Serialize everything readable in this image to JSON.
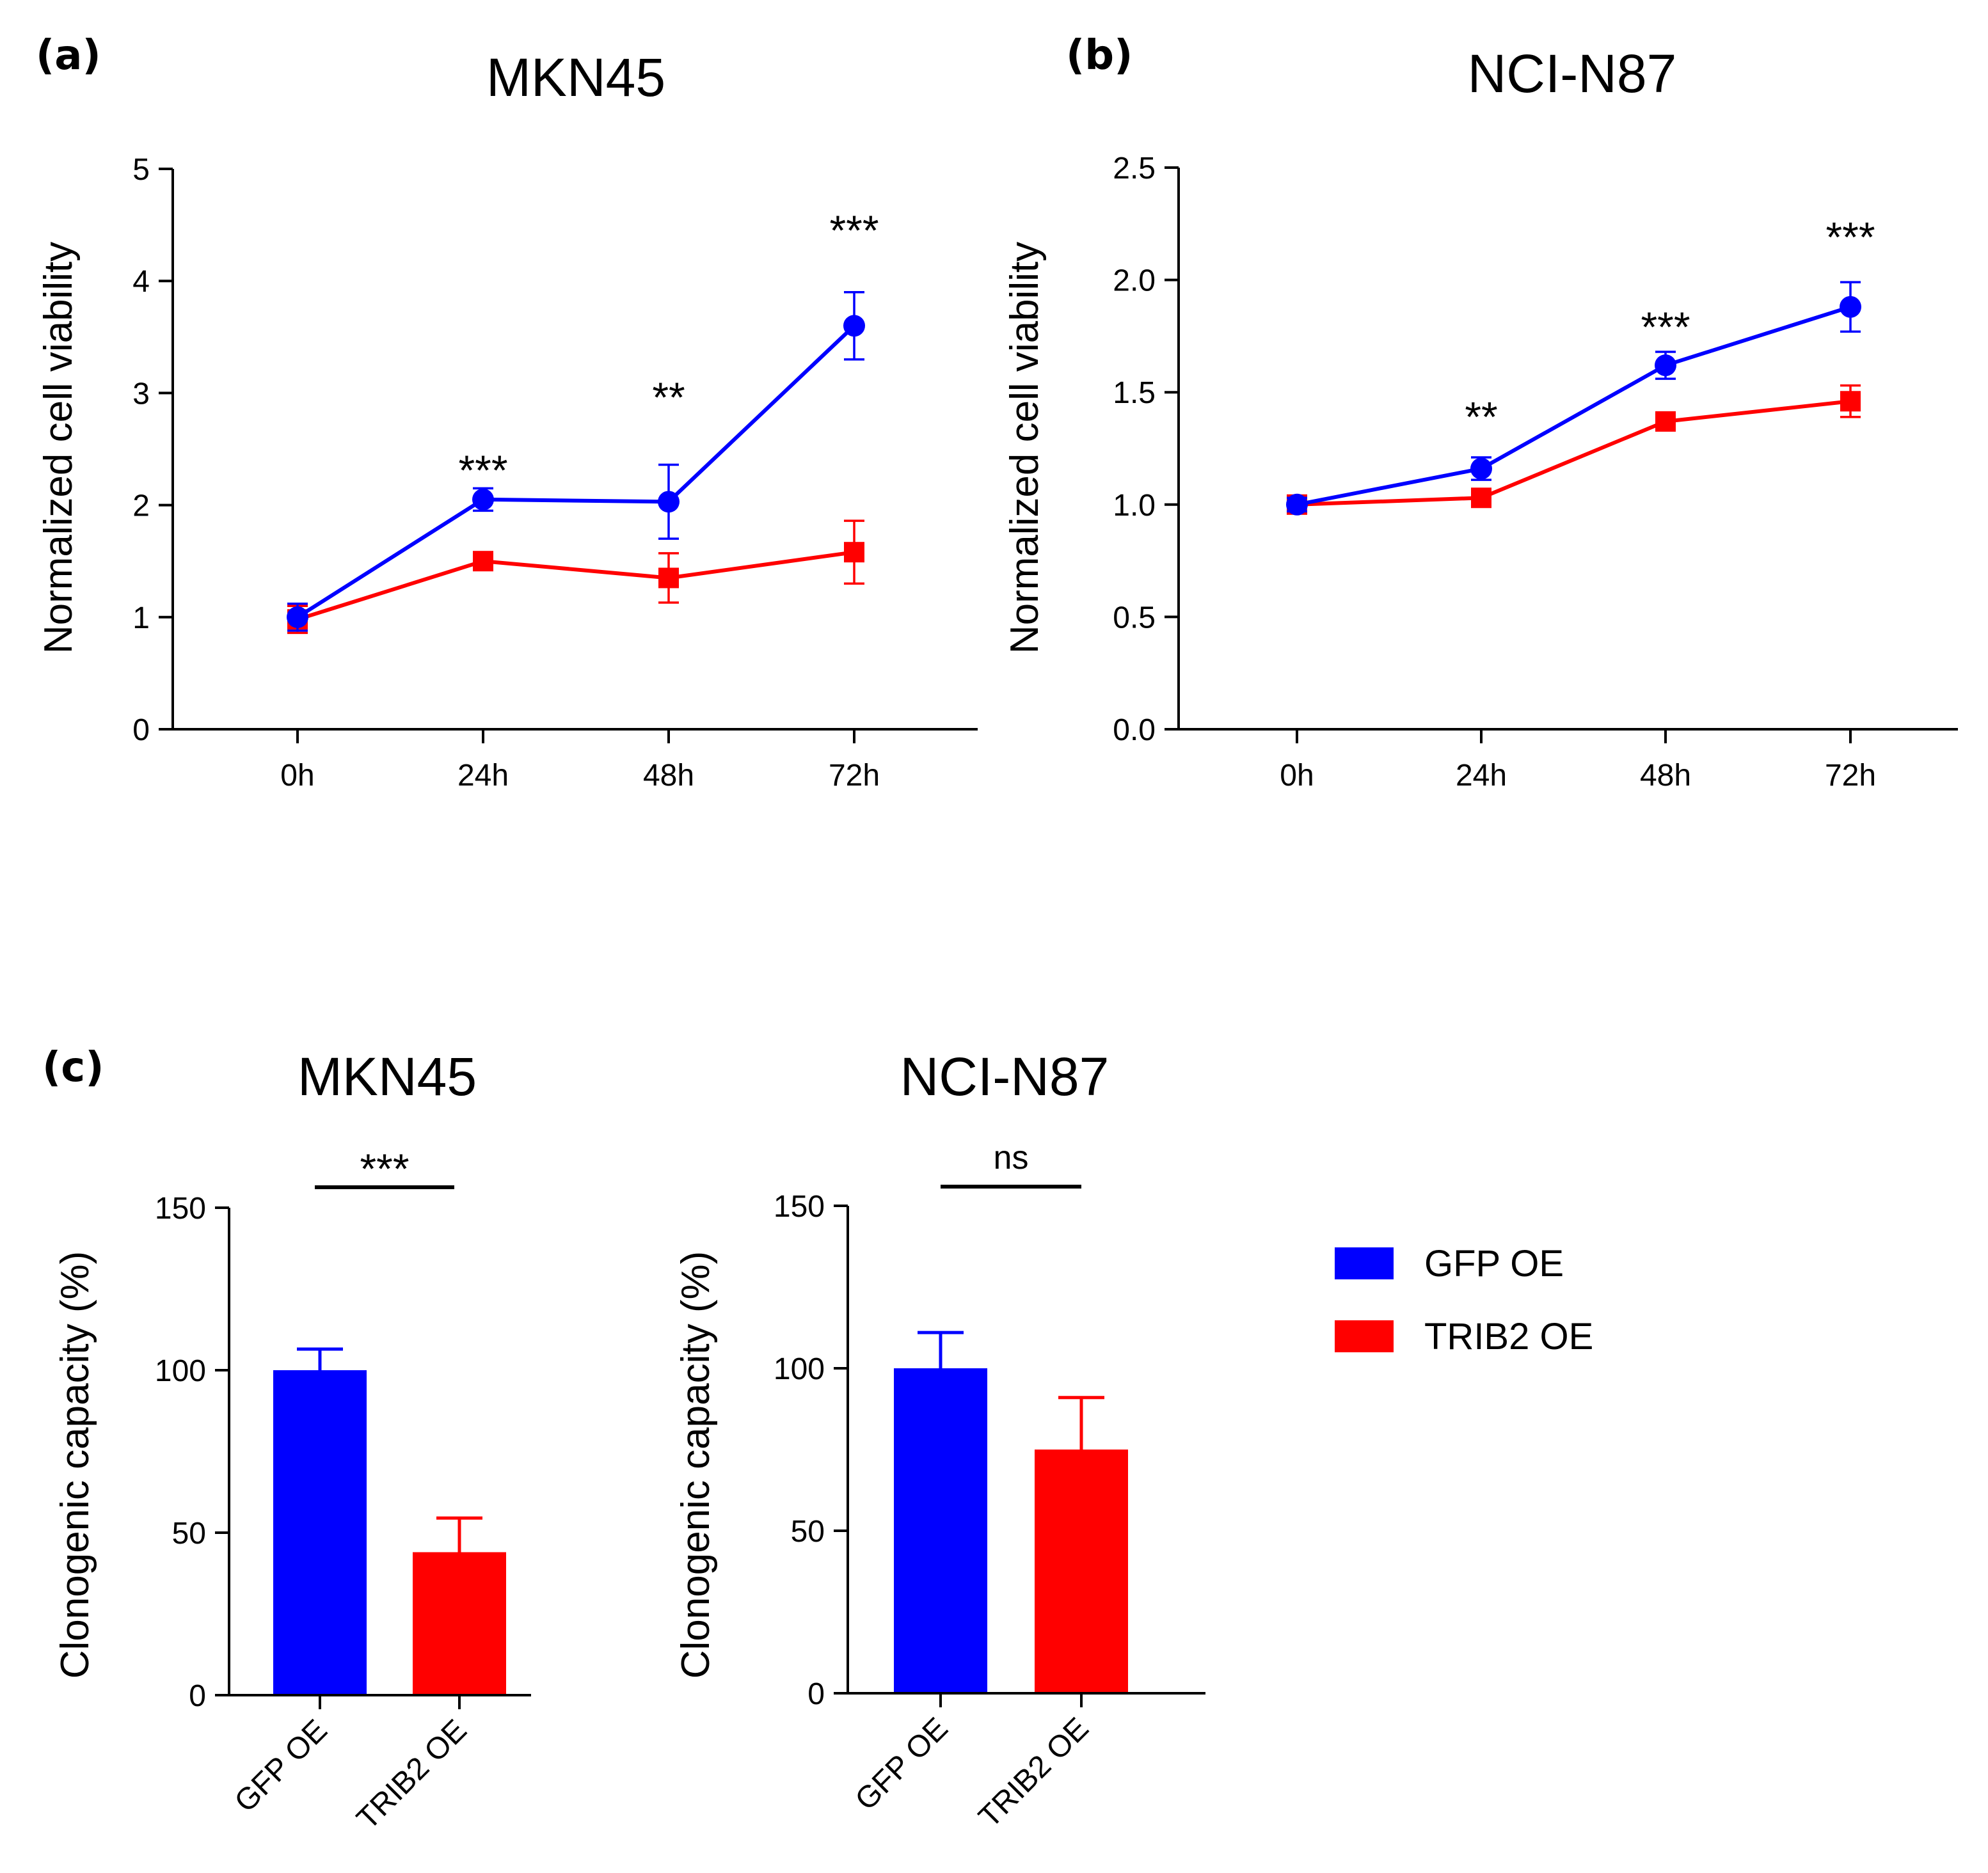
{
  "colors": {
    "gfp": "#0000ff",
    "trib2": "#ff0000",
    "axis": "#000000"
  },
  "legend": {
    "items": [
      {
        "label": "GFP OE",
        "color": "#0000ff"
      },
      {
        "label": "TRIB2 OE",
        "color": "#ff0000"
      }
    ]
  },
  "chart_data": [
    {
      "id": "a",
      "panel_label": "(a)",
      "type": "line",
      "title": "MKN45",
      "xlabel": "",
      "ylabel": "Normalized cell viability",
      "categories": [
        "0h",
        "24h",
        "48h",
        "72h"
      ],
      "ylim": [
        0,
        5
      ],
      "yticks": [
        0,
        1,
        2,
        3,
        4,
        5
      ],
      "ytick_labels": [
        "0",
        "1",
        "2",
        "3",
        "4",
        "5"
      ],
      "series": [
        {
          "name": "GFP OE",
          "color": "#0000ff",
          "marker": "circle",
          "values": [
            1.0,
            2.05,
            2.03,
            3.6
          ],
          "errors": [
            0.12,
            0.1,
            0.33,
            0.3
          ]
        },
        {
          "name": "TRIB2 OE",
          "color": "#ff0000",
          "marker": "square",
          "values": [
            0.98,
            1.5,
            1.35,
            1.58
          ],
          "errors": [
            0.12,
            0.07,
            0.22,
            0.28
          ]
        }
      ],
      "annotations": [
        {
          "category": "24h",
          "y": 2.33,
          "text": "***"
        },
        {
          "category": "48h",
          "y": 2.98,
          "text": "**"
        },
        {
          "category": "72h",
          "y": 4.47,
          "text": "***"
        }
      ]
    },
    {
      "id": "b",
      "panel_label": "(b)",
      "type": "line",
      "title": "NCI-N87",
      "xlabel": "",
      "ylabel": "Normalized cell viability",
      "categories": [
        "0h",
        "24h",
        "48h",
        "72h"
      ],
      "ylim": [
        0,
        2.5
      ],
      "yticks": [
        0,
        0.5,
        1,
        1.5,
        2,
        2.5
      ],
      "ytick_labels": [
        "0.0",
        "0.5",
        "1.0",
        "1.5",
        "2.0",
        "2.5"
      ],
      "series": [
        {
          "name": "GFP OE",
          "color": "#0000ff",
          "marker": "circle",
          "values": [
            1.0,
            1.16,
            1.62,
            1.88
          ],
          "errors": [
            0.03,
            0.05,
            0.06,
            0.11
          ]
        },
        {
          "name": "TRIB2 OE",
          "color": "#ff0000",
          "marker": "square",
          "values": [
            1.0,
            1.03,
            1.37,
            1.46
          ],
          "errors": [
            0.03,
            0.02,
            0.03,
            0.07
          ]
        }
      ],
      "annotations": [
        {
          "category": "24h",
          "y": 1.4,
          "text": "**"
        },
        {
          "category": "48h",
          "y": 1.8,
          "text": "***"
        },
        {
          "category": "72h",
          "y": 2.2,
          "text": "***"
        }
      ]
    },
    {
      "id": "c1",
      "panel_label": "(c)",
      "type": "bar",
      "title": "MKN45",
      "xlabel": "",
      "ylabel": "Clonogenic capacity (%)",
      "categories": [
        "GFP OE",
        "TRIB2 OE"
      ],
      "values": [
        100,
        44
      ],
      "errors": [
        6.5,
        10.5
      ],
      "colors": [
        "#0000ff",
        "#ff0000"
      ],
      "ylim": [
        0,
        150
      ],
      "yticks": [
        0,
        50,
        100,
        150
      ],
      "ytick_labels": [
        "0",
        "50",
        "100",
        "150"
      ],
      "significance": {
        "text": "***"
      }
    },
    {
      "id": "c2",
      "panel_label": "",
      "type": "bar",
      "title": "NCI-N87",
      "xlabel": "",
      "ylabel": "Clonogenic capacity (%)",
      "categories": [
        "GFP OE",
        "TRIB2 OE"
      ],
      "values": [
        100,
        75
      ],
      "errors": [
        11,
        16
      ],
      "colors": [
        "#0000ff",
        "#ff0000"
      ],
      "ylim": [
        0,
        150
      ],
      "yticks": [
        0,
        50,
        100,
        150
      ],
      "ytick_labels": [
        "0",
        "50",
        "100",
        "150"
      ],
      "significance": {
        "text": "ns"
      }
    }
  ]
}
